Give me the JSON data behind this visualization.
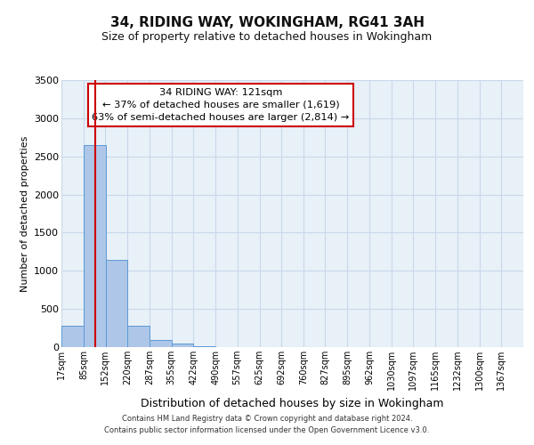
{
  "title": "34, RIDING WAY, WOKINGHAM, RG41 3AH",
  "subtitle": "Size of property relative to detached houses in Wokingham",
  "xlabel": "Distribution of detached houses by size in Wokingham",
  "ylabel": "Number of detached properties",
  "bin_labels": [
    "17sqm",
    "85sqm",
    "152sqm",
    "220sqm",
    "287sqm",
    "355sqm",
    "422sqm",
    "490sqm",
    "557sqm",
    "625sqm",
    "692sqm",
    "760sqm",
    "827sqm",
    "895sqm",
    "962sqm",
    "1030sqm",
    "1097sqm",
    "1165sqm",
    "1232sqm",
    "1300sqm",
    "1367sqm"
  ],
  "bin_edges": [
    17,
    85,
    152,
    220,
    287,
    355,
    422,
    490,
    557,
    625,
    692,
    760,
    827,
    895,
    962,
    1030,
    1097,
    1165,
    1232,
    1300,
    1367
  ],
  "bar_heights": [
    275,
    2650,
    1140,
    275,
    90,
    45,
    10,
    0,
    0,
    0,
    0,
    0,
    0,
    0,
    0,
    0,
    0,
    0,
    0,
    0
  ],
  "bar_color": "#aec6e8",
  "bar_edgecolor": "#5b9bd5",
  "vline_x": 121,
  "vline_color": "#cc0000",
  "ylim": [
    0,
    3500
  ],
  "yticks": [
    0,
    500,
    1000,
    1500,
    2000,
    2500,
    3000,
    3500
  ],
  "annotation_title": "34 RIDING WAY: 121sqm",
  "annotation_line1": "← 37% of detached houses are smaller (1,619)",
  "annotation_line2": "63% of semi-detached houses are larger (2,814) →",
  "annotation_box_color": "#ffffff",
  "annotation_box_edgecolor": "#cc0000",
  "footer_line1": "Contains HM Land Registry data © Crown copyright and database right 2024.",
  "footer_line2": "Contains public sector information licensed under the Open Government Licence v3.0.",
  "background_color": "#ffffff",
  "plot_bg_color": "#e8f0f8",
  "grid_color": "#c8d8ea"
}
